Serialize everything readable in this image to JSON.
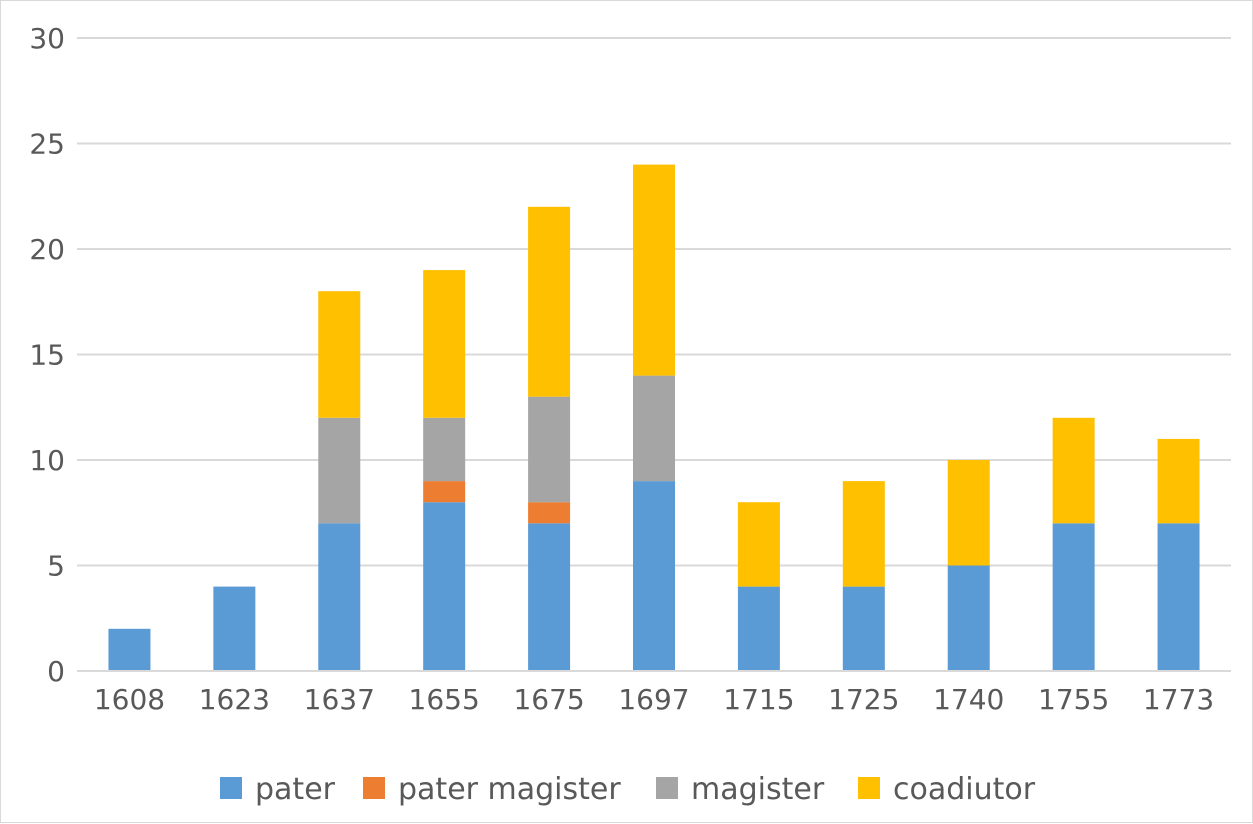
{
  "chart_data": {
    "type": "bar",
    "stacked": true,
    "title": "",
    "xlabel": "",
    "ylabel": "",
    "categories": [
      "1608",
      "1623",
      "1637",
      "1655",
      "1675",
      "1697",
      "1715",
      "1725",
      "1740",
      "1755",
      "1773"
    ],
    "series": [
      {
        "name": "pater",
        "color": "#5b9bd5",
        "values": [
          2,
          4,
          7,
          8,
          7,
          9,
          4,
          4,
          5,
          7,
          7
        ]
      },
      {
        "name": "pater magister",
        "color": "#ed7d31",
        "values": [
          0,
          0,
          0,
          1,
          1,
          0,
          0,
          0,
          0,
          0,
          0
        ]
      },
      {
        "name": "magister",
        "color": "#a5a5a5",
        "values": [
          0,
          0,
          5,
          3,
          5,
          5,
          0,
          0,
          0,
          0,
          0
        ]
      },
      {
        "name": "coadiutor",
        "color": "#ffc000",
        "values": [
          0,
          0,
          6,
          7,
          9,
          10,
          4,
          5,
          5,
          5,
          4
        ]
      }
    ],
    "ylim": [
      0,
      30
    ],
    "yticks": [
      0,
      5,
      10,
      15,
      20,
      25,
      30
    ],
    "grid": true,
    "legend_position": "bottom"
  }
}
